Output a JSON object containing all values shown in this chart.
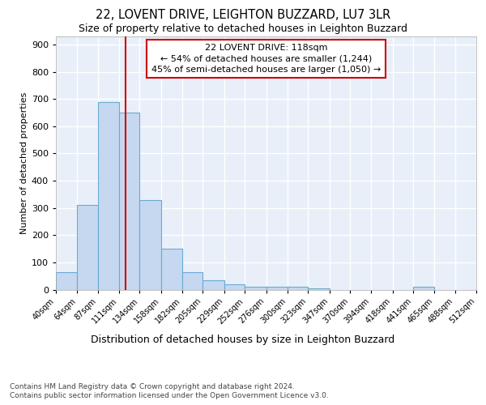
{
  "title_line1": "22, LOVENT DRIVE, LEIGHTON BUZZARD, LU7 3LR",
  "title_line2": "Size of property relative to detached houses in Leighton Buzzard",
  "xlabel": "Distribution of detached houses by size in Leighton Buzzard",
  "ylabel": "Number of detached properties",
  "footnote_line1": "Contains HM Land Registry data © Crown copyright and database right 2024.",
  "footnote_line2": "Contains public sector information licensed under the Open Government Licence v3.0.",
  "bin_edges": [
    40,
    64,
    87,
    111,
    134,
    158,
    182,
    205,
    229,
    252,
    276,
    300,
    323,
    347,
    370,
    394,
    418,
    441,
    465,
    488,
    512
  ],
  "bar_heights": [
    65,
    310,
    688,
    650,
    330,
    150,
    65,
    35,
    20,
    10,
    10,
    10,
    5,
    0,
    0,
    0,
    0,
    10,
    0,
    0
  ],
  "bar_color": "#c5d8f0",
  "bar_edgecolor": "#6aaad4",
  "vline_x": 118,
  "vline_color": "#cc0000",
  "annotation_text": "22 LOVENT DRIVE: 118sqm\n← 54% of detached houses are smaller (1,244)\n45% of semi-detached houses are larger (1,050) →",
  "ylim": [
    0,
    930
  ],
  "yticks": [
    0,
    100,
    200,
    300,
    400,
    500,
    600,
    700,
    800,
    900
  ],
  "background_color": "#e8eff9",
  "grid_color": "#ffffff",
  "title1_fontsize": 10.5,
  "title2_fontsize": 9,
  "xlabel_fontsize": 9,
  "ylabel_fontsize": 8,
  "ytick_fontsize": 8,
  "xtick_fontsize": 7,
  "ann_fontsize": 8,
  "footnote_fontsize": 6.5
}
